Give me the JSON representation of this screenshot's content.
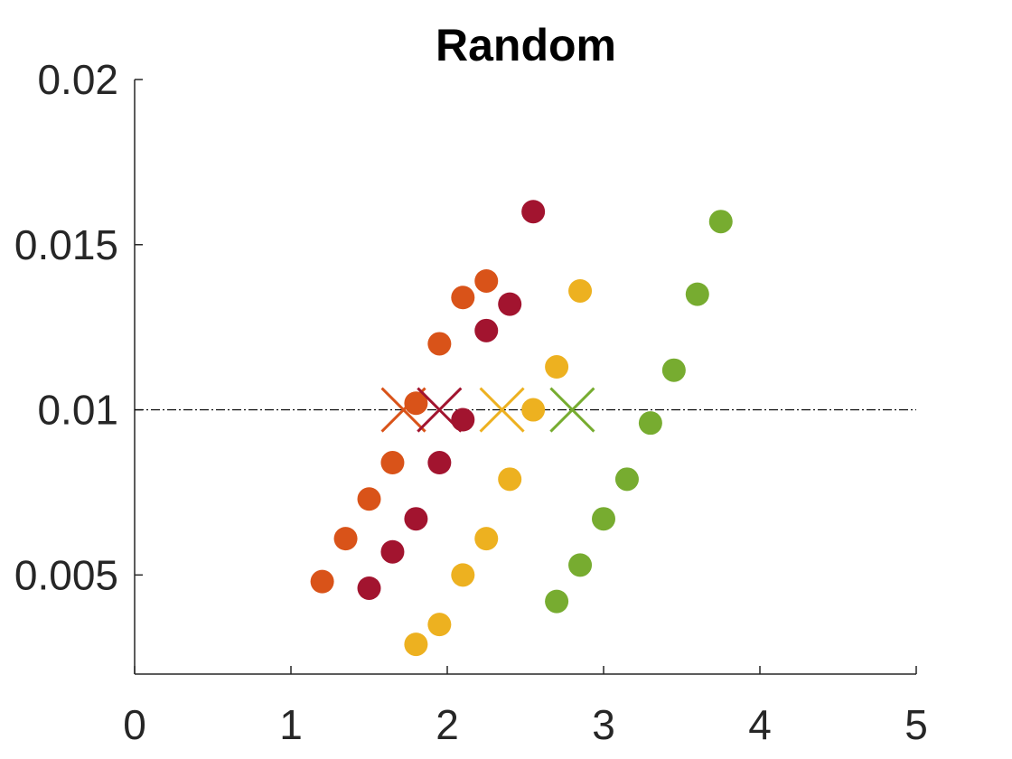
{
  "chart_data": {
    "type": "scatter",
    "title": "Random",
    "xlabel": "",
    "ylabel": "",
    "xlim": [
      0,
      5
    ],
    "ylim": [
      0.002,
      0.02
    ],
    "xticks": [
      0,
      1,
      2,
      3,
      4,
      5
    ],
    "xtick_labels": [
      "0",
      "1",
      "2",
      "3",
      "4",
      "5"
    ],
    "yticks": [
      0.005,
      0.01,
      0.015,
      0.02
    ],
    "ytick_labels": [
      "0.005",
      "0.01",
      "0.015",
      "0.02"
    ],
    "grid": false,
    "reference_line": {
      "y": 0.01,
      "color": "#000000",
      "style": "dash-dot"
    },
    "series": [
      {
        "color": "#D95319",
        "points": [
          [
            1.2,
            0.0048
          ],
          [
            1.35,
            0.0061
          ],
          [
            1.5,
            0.0073
          ],
          [
            1.65,
            0.0084
          ],
          [
            1.8,
            0.0102
          ],
          [
            1.95,
            0.012
          ],
          [
            2.1,
            0.0134
          ],
          [
            2.25,
            0.0139
          ]
        ],
        "marker_x": [
          1.72,
          0.01
        ]
      },
      {
        "color": "#A2142F",
        "points": [
          [
            1.5,
            0.0046
          ],
          [
            1.65,
            0.0057
          ],
          [
            1.8,
            0.0067
          ],
          [
            1.95,
            0.0084
          ],
          [
            2.1,
            0.0097
          ],
          [
            2.25,
            0.0124
          ],
          [
            2.4,
            0.0132
          ],
          [
            2.55,
            0.016
          ]
        ],
        "marker_x": [
          1.95,
          0.01
        ]
      },
      {
        "color": "#EDB120",
        "points": [
          [
            1.8,
            0.0029
          ],
          [
            1.95,
            0.0035
          ],
          [
            2.1,
            0.005
          ],
          [
            2.25,
            0.0061
          ],
          [
            2.4,
            0.0079
          ],
          [
            2.55,
            0.01
          ],
          [
            2.7,
            0.0113
          ],
          [
            2.85,
            0.0136
          ]
        ],
        "marker_x": [
          2.35,
          0.01
        ]
      },
      {
        "color": "#77AC30",
        "points": [
          [
            2.7,
            0.0042
          ],
          [
            2.85,
            0.0053
          ],
          [
            3.0,
            0.0067
          ],
          [
            3.15,
            0.0079
          ],
          [
            3.3,
            0.0096
          ],
          [
            3.45,
            0.0112
          ],
          [
            3.6,
            0.0135
          ],
          [
            3.75,
            0.0157
          ]
        ],
        "marker_x": [
          2.8,
          0.01
        ]
      }
    ]
  }
}
